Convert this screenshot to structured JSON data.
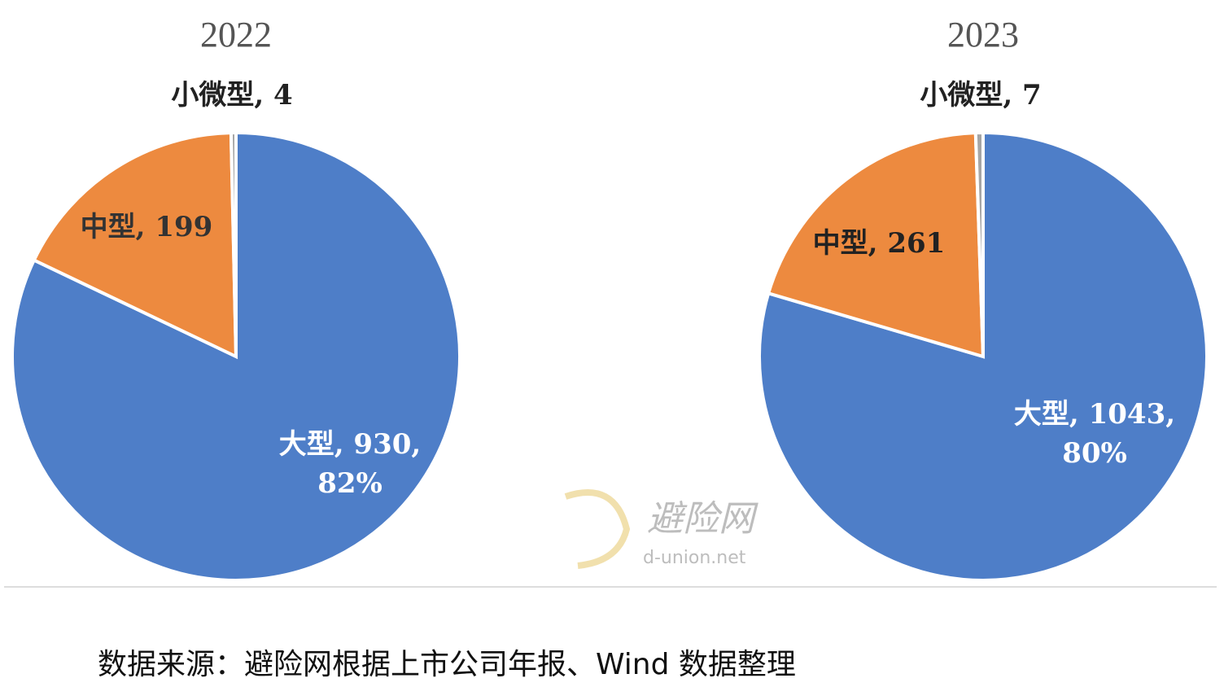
{
  "chart_data": [
    {
      "type": "pie",
      "title": "2022",
      "values": [
        930,
        199,
        4
      ],
      "value_labels": [
        [
          "大型, 930,",
          "82%"
        ],
        [
          "中型, 199"
        ],
        [
          "小微型, 4"
        ]
      ],
      "colors": [
        "#4e7ec8",
        "#ed8a3f",
        "#a5a5a5"
      ]
    },
    {
      "type": "pie",
      "title": "2023",
      "values": [
        1043,
        261,
        7
      ],
      "value_labels": [
        [
          "大型, 1043,",
          "80%"
        ],
        [
          "中型, 261"
        ],
        [
          "小微型, 7"
        ]
      ],
      "colors": [
        "#4e7ec8",
        "#ed8a3f",
        "#a5a5a5"
      ]
    }
  ],
  "watermark": {
    "name": "避险网",
    "url": "d-union.net"
  },
  "source": "数据来源：避险网根据上市公司年报、Wind 数据整理"
}
